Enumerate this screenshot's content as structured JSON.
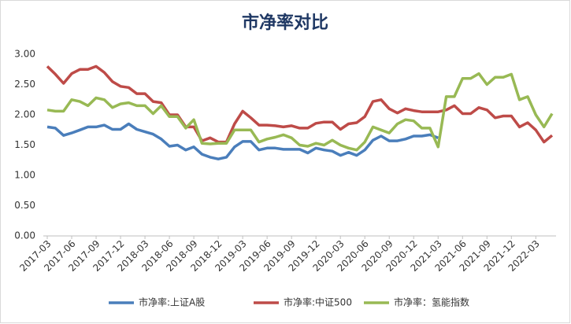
{
  "chart_data": {
    "type": "line",
    "title": "市净率对比",
    "categories": [
      "2017-03",
      null,
      null,
      "2017-06",
      null,
      null,
      "2017-09",
      null,
      null,
      "2017-12",
      null,
      null,
      "2018-03",
      null,
      null,
      "2018-06",
      null,
      null,
      "2018-09",
      null,
      null,
      "2018-12",
      null,
      null,
      "2019-03",
      null,
      null,
      "2019-06",
      null,
      null,
      "2019-09",
      null,
      null,
      "2019-12",
      null,
      null,
      "2020-03",
      null,
      null,
      "2020-06",
      null,
      null,
      "2020-09",
      null,
      null,
      "2020-12",
      null,
      null,
      "2021-03",
      null,
      null,
      "2021-06",
      null,
      null,
      "2021-09",
      null,
      null,
      "2021-12",
      null,
      null,
      "2022-03",
      null,
      null
    ],
    "series": [
      {
        "name": "市净率:上证A股",
        "color": "#4a7ebb",
        "values": [
          1.8,
          1.78,
          1.66,
          1.7,
          1.75,
          1.8,
          1.8,
          1.83,
          1.76,
          1.76,
          1.85,
          1.76,
          1.72,
          1.68,
          1.6,
          1.48,
          1.5,
          1.42,
          1.47,
          1.35,
          1.3,
          1.27,
          1.3,
          1.47,
          1.56,
          1.56,
          1.42,
          1.45,
          1.45,
          1.43,
          1.43,
          1.43,
          1.37,
          1.45,
          1.42,
          1.4,
          1.33,
          1.38,
          1.33,
          1.42,
          1.58,
          1.65,
          1.57,
          1.57,
          1.6,
          1.65,
          1.65,
          1.67,
          1.62,
          null,
          null,
          null,
          null,
          null,
          null,
          null,
          null,
          null,
          null,
          null,
          null,
          null,
          null
        ]
      },
      {
        "name": "市净率:中证500",
        "color": "#be4b48",
        "values": [
          2.8,
          2.67,
          2.52,
          2.68,
          2.75,
          2.75,
          2.8,
          2.7,
          2.55,
          2.47,
          2.45,
          2.35,
          2.35,
          2.22,
          2.2,
          2.0,
          2.0,
          1.8,
          1.8,
          1.57,
          1.62,
          1.55,
          1.55,
          1.85,
          2.06,
          1.95,
          1.83,
          1.83,
          1.82,
          1.8,
          1.82,
          1.78,
          1.78,
          1.86,
          1.88,
          1.88,
          1.76,
          1.85,
          1.87,
          1.97,
          2.22,
          2.25,
          2.1,
          2.03,
          2.1,
          2.07,
          2.05,
          2.05,
          2.05,
          2.08,
          2.15,
          2.02,
          2.02,
          2.12,
          2.08,
          1.95,
          1.98,
          1.98,
          1.8,
          1.87,
          1.75,
          1.55,
          1.66
        ]
      },
      {
        "name": "市净率：氢能指数",
        "color": "#98b954",
        "values": [
          2.08,
          2.06,
          2.06,
          2.25,
          2.22,
          2.15,
          2.28,
          2.25,
          2.12,
          2.18,
          2.2,
          2.15,
          2.15,
          2.02,
          2.15,
          1.97,
          1.97,
          1.78,
          1.92,
          1.53,
          1.52,
          1.53,
          1.53,
          1.75,
          1.75,
          1.75,
          1.55,
          1.6,
          1.63,
          1.67,
          1.62,
          1.5,
          1.48,
          1.53,
          1.5,
          1.58,
          1.5,
          1.45,
          1.42,
          1.55,
          1.8,
          1.75,
          1.7,
          1.85,
          1.92,
          1.9,
          1.78,
          1.78,
          1.47,
          2.3,
          2.3,
          2.6,
          2.6,
          2.68,
          2.5,
          2.62,
          2.62,
          2.67,
          2.25,
          2.3,
          2.0,
          1.8,
          2.02
        ]
      }
    ],
    "ylim": [
      0,
      3
    ],
    "yticks": [
      {
        "value": 0,
        "label": "0.00"
      },
      {
        "value": 0.5,
        "label": "0.50"
      },
      {
        "value": 1,
        "label": "1.00"
      },
      {
        "value": 1.5,
        "label": "1.50"
      },
      {
        "value": 2,
        "label": "2.00"
      },
      {
        "value": 2.5,
        "label": "2.50"
      },
      {
        "value": 3,
        "label": "3.00"
      }
    ],
    "grid": false,
    "legend": "bottom"
  }
}
